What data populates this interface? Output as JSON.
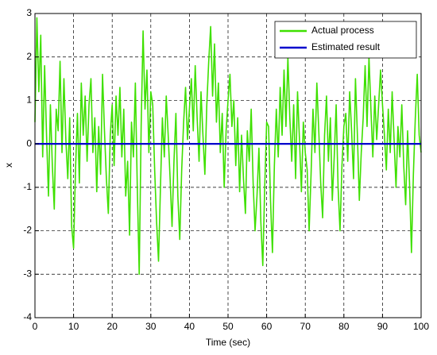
{
  "chart_data": {
    "type": "line",
    "xlabel": "Time (sec)",
    "ylabel": "x",
    "xlim": [
      0,
      100
    ],
    "xticks": [
      0,
      10,
      20,
      30,
      40,
      50,
      60,
      70,
      80,
      90,
      100
    ],
    "ylim": [
      -4,
      3
    ],
    "yticks": [
      -4,
      -3,
      -2,
      -1,
      0,
      1,
      2,
      3
    ],
    "grid": true,
    "legend": "upper right",
    "series": [
      {
        "name": "Actual process",
        "color": "#3ee000",
        "x": [
          0,
          0.5,
          1,
          1.5,
          2,
          2.5,
          3,
          3.5,
          4,
          4.5,
          5,
          5.5,
          6,
          6.5,
          7,
          7.5,
          8,
          8.5,
          9,
          9.5,
          10,
          10.5,
          11,
          11.5,
          12,
          12.5,
          13,
          13.5,
          14,
          14.5,
          15,
          15.5,
          16,
          16.5,
          17,
          17.5,
          18,
          18.5,
          19,
          19.5,
          20,
          20.5,
          21,
          21.5,
          22,
          22.5,
          23,
          23.5,
          24,
          24.5,
          25,
          25.5,
          26,
          26.5,
          27,
          27.5,
          28,
          28.5,
          29,
          29.5,
          30,
          30.5,
          31,
          31.5,
          32,
          32.5,
          33,
          33.5,
          34,
          34.5,
          35,
          35.5,
          36,
          36.5,
          37,
          37.5,
          38,
          38.5,
          39,
          39.5,
          40,
          40.5,
          41,
          41.5,
          42,
          42.5,
          43,
          43.5,
          44,
          44.5,
          45,
          45.5,
          46,
          46.5,
          47,
          47.5,
          48,
          48.5,
          49,
          49.5,
          50,
          50.5,
          51,
          51.5,
          52,
          52.5,
          53,
          53.5,
          54,
          54.5,
          55,
          55.5,
          56,
          56.5,
          57,
          57.5,
          58,
          58.5,
          59,
          59.5,
          60,
          60.5,
          61,
          61.5,
          62,
          62.5,
          63,
          63.5,
          64,
          64.5,
          65,
          65.5,
          66,
          66.5,
          67,
          67.5,
          68,
          68.5,
          69,
          69.5,
          70,
          70.5,
          71,
          71.5,
          72,
          72.5,
          73,
          73.5,
          74,
          74.5,
          75,
          75.5,
          76,
          76.5,
          77,
          77.5,
          78,
          78.5,
          79,
          79.5,
          80,
          80.5,
          81,
          81.5,
          82,
          82.5,
          83,
          83.5,
          84,
          84.5,
          85,
          85.5,
          86,
          86.5,
          87,
          87.5,
          88,
          88.5,
          89,
          89.5,
          90,
          90.5,
          91,
          91.5,
          92,
          92.5,
          93,
          93.5,
          94,
          94.5,
          95,
          95.5,
          96,
          96.5,
          97,
          97.5,
          98,
          98.5,
          99,
          99.5,
          100
        ],
        "values": [
          0.5,
          2.9,
          1.2,
          2.5,
          -0.3,
          1.8,
          0.2,
          -1.2,
          0.9,
          -0.5,
          -1.5,
          0.8,
          0.3,
          1.9,
          -0.2,
          1.5,
          0.1,
          -0.8,
          0.6,
          -1.9,
          -2.4,
          -0.6,
          0.7,
          -0.9,
          1.4,
          0.2,
          1.1,
          -0.4,
          0.9,
          1.5,
          -0.2,
          0.6,
          -1.1,
          0.4,
          -0.7,
          1.6,
          0.3,
          -0.8,
          -1.6,
          0.2,
          0.9,
          -0.5,
          1.1,
          0.2,
          1.3,
          -0.3,
          0.8,
          -1.2,
          -0.4,
          -2.1,
          0.5,
          -0.3,
          1.4,
          -1.0,
          -3.0,
          0.4,
          2.6,
          0.8,
          1.7,
          -0.2,
          1.2,
          0.9,
          -0.6,
          -1.8,
          -2.7,
          -1.0,
          0.6,
          -0.3,
          1.1,
          0.2,
          -0.8,
          -1.9,
          -0.4,
          0.7,
          -1.2,
          -2.2,
          -0.6,
          0.5,
          1.3,
          0.1,
          0.8,
          1.5,
          0.3,
          1.8,
          0.6,
          -0.4,
          1.2,
          0.2,
          -0.7,
          0.9,
          1.9,
          2.7,
          1.1,
          2.3,
          0.5,
          1.4,
          -0.2,
          0.7,
          -1.0,
          0.3,
          1.0,
          1.6,
          0.4,
          1.0,
          -0.5,
          0.6,
          -1.1,
          0.2,
          -0.8,
          -1.6,
          0.3,
          -0.4,
          0.8,
          -0.9,
          -2.0,
          -1.2,
          -0.1,
          -1.8,
          -2.8,
          -1.0,
          0.5,
          0.4,
          -1.3,
          -2.5,
          -0.5,
          0.8,
          -0.3,
          1.3,
          0.2,
          1.7,
          0.4,
          2.0,
          0.6,
          -0.4,
          0.9,
          -0.8,
          1.2,
          0.1,
          -1.1,
          0.5,
          -0.2,
          -0.6,
          -2.0,
          -0.7,
          0.8,
          -0.2,
          1.4,
          0.3,
          -0.9,
          -1.7,
          0.2,
          1.1,
          -0.4,
          0.6,
          -1.3,
          -0.3,
          0.9,
          -1.0,
          -2.0,
          -0.5,
          0.4,
          0.7,
          -0.4,
          1.2,
          0.3,
          -0.8,
          1.5,
          0.2,
          -1.3,
          -0.2,
          0.6,
          1.8,
          0.4,
          2.0,
          0.8,
          -0.3,
          1.1,
          0.1,
          0.9,
          1.7,
          0.9,
          0.2,
          -0.6,
          0.8,
          -0.2,
          1.2,
          0.1,
          -1.0,
          0.4,
          -0.3,
          0.9,
          -0.5,
          -1.4,
          0.3,
          -0.9,
          -2.5,
          -0.7,
          0.6,
          1.6,
          0.2,
          -0.2
        ]
      },
      {
        "name": "Estimated result",
        "color": "#0000cc",
        "x": [
          0,
          100
        ],
        "values": [
          0,
          0
        ]
      }
    ]
  }
}
